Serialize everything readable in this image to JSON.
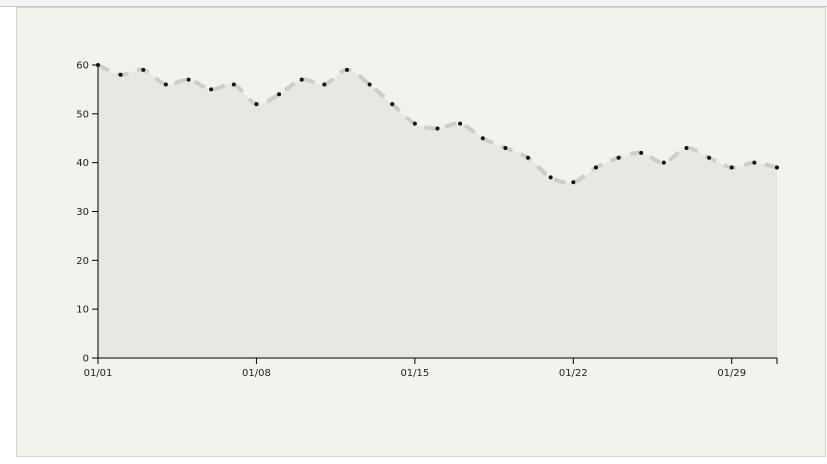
{
  "chart_data": {
    "type": "area",
    "title": "",
    "xlabel": "",
    "ylabel": "",
    "ylim": [
      0,
      60
    ],
    "yticks": [
      0,
      10,
      20,
      30,
      40,
      50,
      60
    ],
    "xticks": [
      {
        "day": 1,
        "label": "01/01"
      },
      {
        "day": 8,
        "label": "01/08"
      },
      {
        "day": 15,
        "label": "01/15"
      },
      {
        "day": 22,
        "label": "01/22"
      },
      {
        "day": 29,
        "label": "01/29"
      }
    ],
    "xlim_days": [
      1,
      31
    ],
    "grid": false,
    "colors": {
      "area": "#e9e7e2",
      "line": "#cfcdc8",
      "marker": "#111111",
      "panel": "#f4f2ec"
    },
    "series": [
      {
        "x": [
          "01/01",
          "01/02",
          "01/03",
          "01/04",
          "01/05",
          "01/06",
          "01/07",
          "01/08",
          "01/09",
          "01/10",
          "01/11",
          "01/12",
          "01/13",
          "01/14",
          "01/15",
          "01/16",
          "01/17",
          "01/18",
          "01/19",
          "01/20",
          "01/21",
          "01/22",
          "01/23",
          "01/24",
          "01/25",
          "01/26",
          "01/27",
          "01/28",
          "01/29",
          "01/30",
          "01/31"
        ],
        "values": [
          60,
          58,
          59,
          56,
          57,
          55,
          56,
          52,
          54,
          57,
          56,
          59,
          56,
          52,
          48,
          47,
          48,
          45,
          43,
          41,
          37,
          36,
          39,
          41,
          42,
          40,
          43,
          41,
          39,
          40,
          39
        ]
      }
    ]
  }
}
